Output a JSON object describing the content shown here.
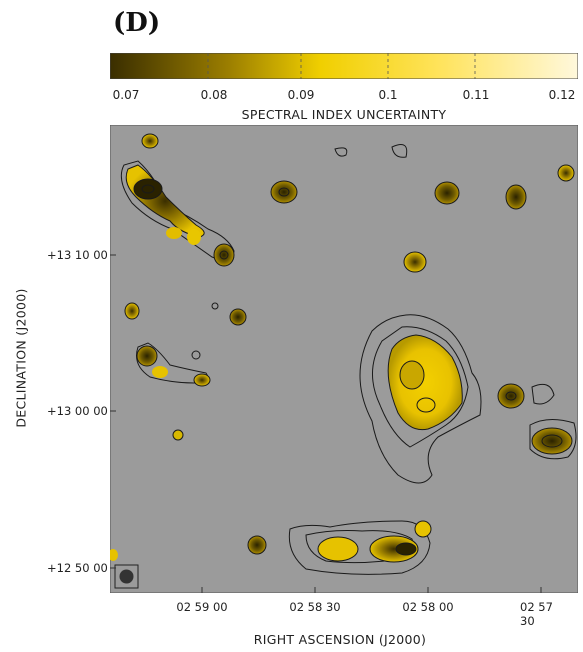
{
  "panel_label": "(D)",
  "colorbar": {
    "title": "SPECTRAL INDEX UNCERTAINTY",
    "ticks": [
      "0.07",
      "0.08",
      "0.09",
      "0.1",
      "0.11",
      "0.12"
    ],
    "colors": [
      "#3a2e00",
      "#9a7d00",
      "#f0cf00",
      "#ffe35a",
      "#fff8dc"
    ]
  },
  "axes": {
    "x_title": "RIGHT ASCENSION (J2000)",
    "y_title": "DECLINATION (J2000)",
    "x_ticks": [
      "02 59 00",
      "02 58 30",
      "02 58 00",
      "02 57 30"
    ],
    "y_ticks": [
      "+13 10 00",
      "+13 00 00",
      "+12 50 00"
    ]
  },
  "map_colors": {
    "background": "#9b9b9b",
    "contour": "#1a1a1a"
  }
}
